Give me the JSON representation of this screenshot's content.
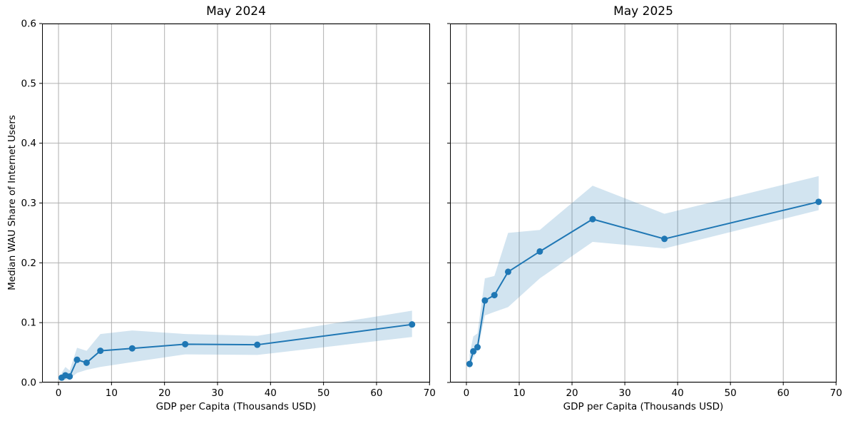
{
  "figure": {
    "background": "#ffffff",
    "line_color": "#1f77b4",
    "band_color": "#1f77b4",
    "band_opacity": 0.2,
    "grid_color": "#b0b0b0",
    "spine_color": "#000000",
    "text_color": "#000000"
  },
  "chart_data": [
    {
      "type": "line",
      "title": "May 2024",
      "xlabel": "GDP per Capita (Thousands USD)",
      "ylabel": "Median WAU Share of Internet Users",
      "x": [
        0.6,
        1.3,
        2.1,
        3.5,
        5.3,
        7.9,
        13.9,
        23.9,
        37.5,
        66.7
      ],
      "y": [
        0.008,
        0.012,
        0.01,
        0.038,
        0.033,
        0.053,
        0.057,
        0.064,
        0.063,
        0.097
      ],
      "band_upper": [
        0.016,
        0.026,
        0.02,
        0.058,
        0.053,
        0.081,
        0.087,
        0.081,
        0.078,
        0.12
      ],
      "band_lower": [
        0.003,
        0.004,
        0.006,
        0.016,
        0.021,
        0.026,
        0.034,
        0.047,
        0.046,
        0.076
      ],
      "xlim": [
        -3.1,
        70.1
      ],
      "ylim": [
        0.0,
        0.6
      ],
      "xticks": [
        0,
        10,
        20,
        30,
        40,
        50,
        60,
        70
      ],
      "xtick_labels": [
        "0",
        "10",
        "20",
        "30",
        "40",
        "50",
        "60",
        "70"
      ],
      "yticks": [
        0.0,
        0.1,
        0.2,
        0.3,
        0.4,
        0.5,
        0.6
      ],
      "ytick_labels": [
        "0.0",
        "0.1",
        "0.2",
        "0.3",
        "0.4",
        "0.5",
        "0.6"
      ],
      "grid": true,
      "legend": "none",
      "show_y_tick_labels": true
    },
    {
      "type": "line",
      "title": "May 2025",
      "xlabel": "GDP per Capita (Thousands USD)",
      "ylabel": "",
      "x": [
        0.6,
        1.3,
        2.1,
        3.5,
        5.3,
        7.9,
        13.9,
        23.9,
        37.5,
        66.7
      ],
      "y": [
        0.031,
        0.052,
        0.059,
        0.137,
        0.146,
        0.185,
        0.219,
        0.273,
        0.24,
        0.302
      ],
      "band_upper": [
        0.046,
        0.077,
        0.082,
        0.174,
        0.178,
        0.25,
        0.255,
        0.329,
        0.282,
        0.345
      ],
      "band_lower": [
        0.021,
        0.042,
        0.052,
        0.112,
        0.118,
        0.126,
        0.174,
        0.235,
        0.224,
        0.288
      ],
      "xlim": [
        -3.1,
        70.1
      ],
      "ylim": [
        0.0,
        0.6
      ],
      "xticks": [
        0,
        10,
        20,
        30,
        40,
        50,
        60,
        70
      ],
      "xtick_labels": [
        "0",
        "10",
        "20",
        "30",
        "40",
        "50",
        "60",
        "70"
      ],
      "yticks": [
        0.0,
        0.1,
        0.2,
        0.3,
        0.4,
        0.5,
        0.6
      ],
      "ytick_labels": [
        "0.0",
        "0.1",
        "0.2",
        "0.3",
        "0.4",
        "0.5",
        "0.6"
      ],
      "grid": true,
      "legend": "none",
      "show_y_tick_labels": false
    }
  ]
}
